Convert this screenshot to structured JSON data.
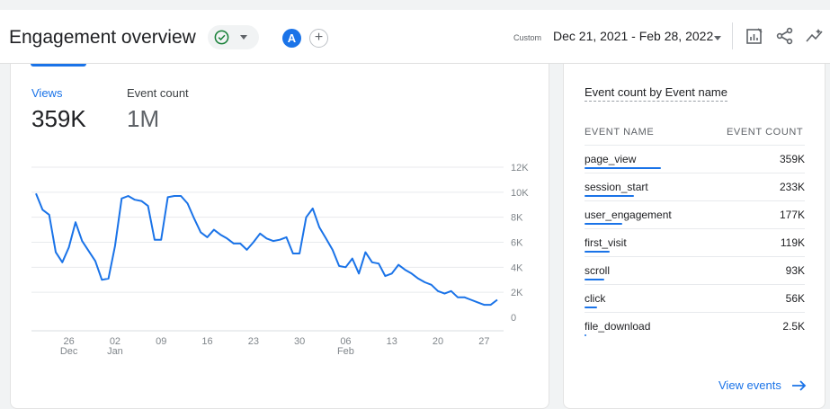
{
  "header": {
    "title": "Engagement overview",
    "avatar_letter": "A",
    "add_symbol": "+",
    "date_label": "Custom",
    "date_range": "Dec 21, 2021 - Feb 28, 2022",
    "icons": [
      "check-circle-icon",
      "chevron-down-icon",
      "add-comparison-icon",
      "customize-report-icon",
      "share-icon",
      "insights-icon"
    ],
    "accent_color": "#1a73e8",
    "status_color": "#188038"
  },
  "metrics": [
    {
      "label": "Views",
      "value": "359K",
      "active": true
    },
    {
      "label": "Event count",
      "value": "1M",
      "active": false
    }
  ],
  "chart_data": {
    "type": "line",
    "title": "",
    "xlabel": "",
    "ylabel": "",
    "y_ticks": [
      "12K",
      "10K",
      "8K",
      "6K",
      "4K",
      "2K",
      "0"
    ],
    "ylim": [
      0,
      12000
    ],
    "grid": true,
    "x_ticks": [
      {
        "day": "26",
        "month": "Dec"
      },
      {
        "day": "02",
        "month": "Jan"
      },
      {
        "day": "09",
        "month": ""
      },
      {
        "day": "16",
        "month": ""
      },
      {
        "day": "23",
        "month": ""
      },
      {
        "day": "30",
        "month": ""
      },
      {
        "day": "06",
        "month": "Feb"
      },
      {
        "day": "13",
        "month": ""
      },
      {
        "day": "20",
        "month": ""
      },
      {
        "day": "27",
        "month": ""
      }
    ],
    "x_start_date": "2021-12-21",
    "series": [
      {
        "color": "#1a73e8",
        "values": [
          9900,
          8600,
          8200,
          5200,
          4400,
          5600,
          7600,
          6100,
          5300,
          4500,
          3000,
          3100,
          5700,
          9500,
          9700,
          9400,
          9300,
          8900,
          6200,
          6200,
          9600,
          9700,
          9700,
          9100,
          7900,
          6800,
          6400,
          7000,
          6600,
          6300,
          5900,
          5900,
          5400,
          6000,
          6700,
          6300,
          6100,
          6200,
          6400,
          5100,
          5100,
          8000,
          8700,
          7200,
          6300,
          5400,
          4100,
          4000,
          4700,
          3500,
          5200,
          4400,
          4300,
          3300,
          3500,
          4200,
          3800,
          3500,
          3100,
          2800,
          2600,
          2100,
          1900,
          2100,
          1600,
          1600,
          1400,
          1200,
          1000,
          1000,
          1400
        ]
      }
    ]
  },
  "table": {
    "title": "Event count by Event name",
    "col_name": "EVENT NAME",
    "col_count": "EVENT COUNT",
    "rows": [
      {
        "name": "page_view",
        "count": "359K",
        "share": 1.0
      },
      {
        "name": "session_start",
        "count": "233K",
        "share": 0.65
      },
      {
        "name": "user_engagement",
        "count": "177K",
        "share": 0.49
      },
      {
        "name": "first_visit",
        "count": "119K",
        "share": 0.33
      },
      {
        "name": "scroll",
        "count": "93K",
        "share": 0.26
      },
      {
        "name": "click",
        "count": "56K",
        "share": 0.16
      },
      {
        "name": "file_download",
        "count": "2.5K",
        "share": 0.01
      }
    ],
    "link_label": "View events"
  }
}
